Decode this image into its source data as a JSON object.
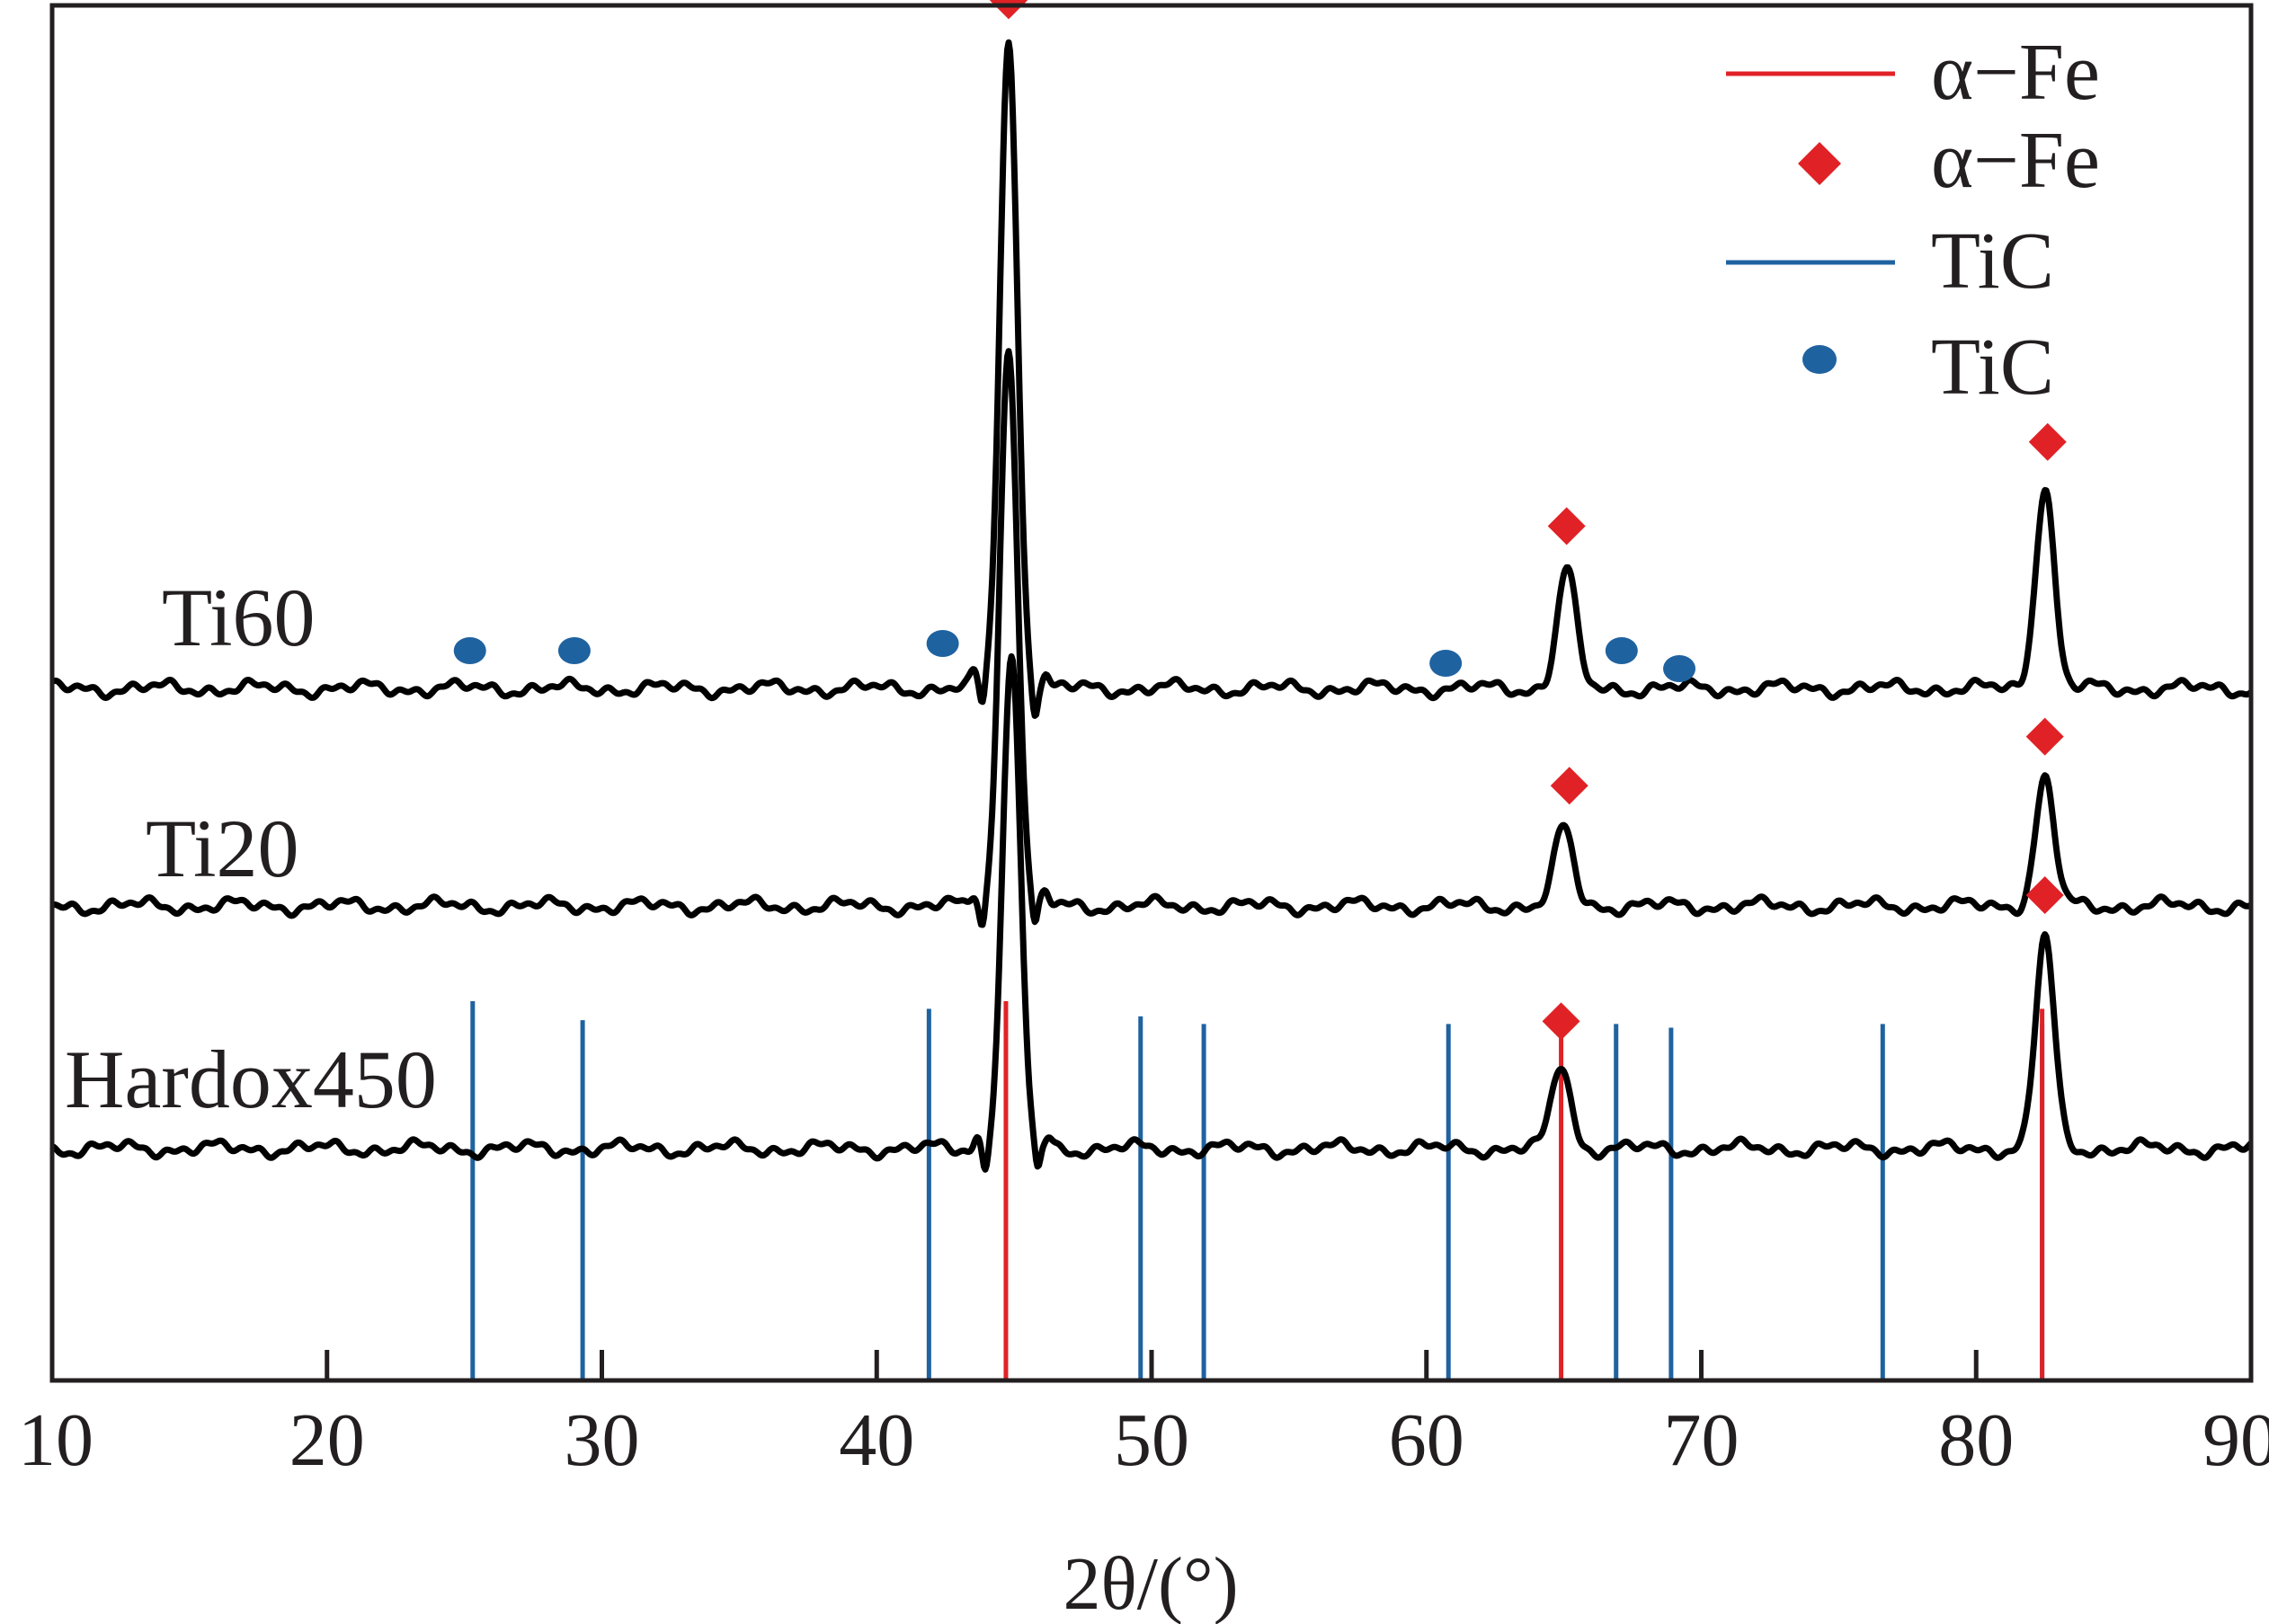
{
  "chart_data": {
    "type": "line",
    "title": "",
    "xlabel": "2θ/(°)",
    "ylabel": "",
    "xlim": [
      10,
      90
    ],
    "xticks": [
      10,
      20,
      30,
      40,
      50,
      60,
      70,
      80,
      90
    ],
    "grid": false,
    "legend": {
      "placement": "top-right",
      "entries": [
        {
          "label": "α−Fe",
          "marker": "line",
          "color": "#e02226"
        },
        {
          "label": "α−Fe",
          "marker": "diamond",
          "color": "#e02226"
        },
        {
          "label": "TiC",
          "marker": "line",
          "color": "#1f62a0"
        },
        {
          "label": "TiC",
          "marker": "circle",
          "color": "#1f62a0"
        }
      ]
    },
    "series": [
      {
        "name": "Ti60",
        "peaks": [
          {
            "x": 44.8,
            "height": 0.92
          },
          {
            "x": 65.1,
            "height": 0.17
          },
          {
            "x": 82.5,
            "height": 0.29
          }
        ],
        "alpha_fe_markers": [
          44.8,
          65.1,
          82.6
        ],
        "tic_markers": [
          25.2,
          29.0,
          42.4,
          60.7,
          67.1,
          69.2
        ]
      },
      {
        "name": "Ti20",
        "peaks": [
          {
            "x": 44.8,
            "height": 0.8
          },
          {
            "x": 65.0,
            "height": 0.11
          },
          {
            "x": 82.5,
            "height": 0.18
          }
        ],
        "alpha_fe_markers": [
          65.2,
          82.5
        ],
        "tic_markers": []
      },
      {
        "name": "Hardox450",
        "peaks": [
          {
            "x": 44.9,
            "height": 0.7
          },
          {
            "x": 64.9,
            "height": 0.12
          },
          {
            "x": 82.5,
            "height": 0.3
          }
        ],
        "alpha_fe_markers": [
          64.9,
          82.5
        ],
        "tic_markers": []
      }
    ],
    "reference_lines": {
      "alpha_fe": [
        {
          "x": 44.7,
          "intensity": 1.0
        },
        {
          "x": 64.9,
          "intensity": 0.98
        },
        {
          "x": 82.4,
          "intensity": 0.98
        }
      ],
      "tic": [
        {
          "x": 25.3,
          "intensity": 1.0
        },
        {
          "x": 29.3,
          "intensity": 0.95
        },
        {
          "x": 41.9,
          "intensity": 0.98
        },
        {
          "x": 49.6,
          "intensity": 0.96
        },
        {
          "x": 51.9,
          "intensity": 0.94
        },
        {
          "x": 60.8,
          "intensity": 0.94
        },
        {
          "x": 66.9,
          "intensity": 0.94
        },
        {
          "x": 68.9,
          "intensity": 0.93
        },
        {
          "x": 76.6,
          "intensity": 0.94
        },
        {
          "x": 82.4,
          "intensity": 0.94
        }
      ]
    }
  }
}
